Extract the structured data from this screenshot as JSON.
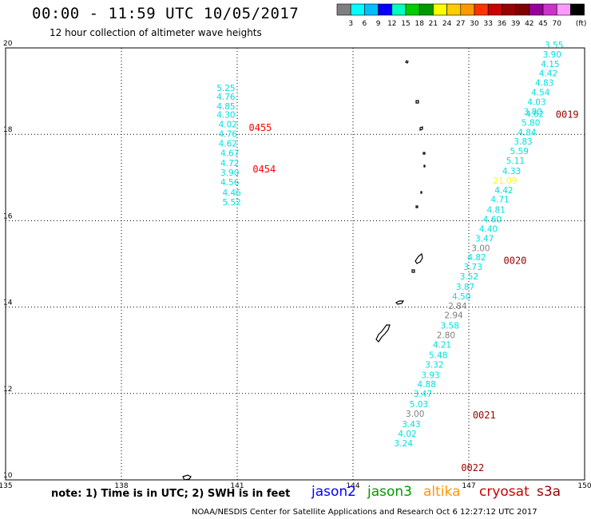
{
  "header": {
    "title": "00:00 - 11:59 UTC 10/05/2017",
    "subtitle": "12 hour collection of altimeter wave heights"
  },
  "color_scale": {
    "colors": [
      "#7f7f7f",
      "#00ffff",
      "#00bfff",
      "#0000ff",
      "#00ffbf",
      "#00cc00",
      "#009900",
      "#ffff00",
      "#ffcc00",
      "#ff9900",
      "#ff3300",
      "#cc0000",
      "#990000",
      "#7f0000",
      "#990099",
      "#cc33cc",
      "#ff99ff",
      "#000000"
    ],
    "labels": [
      "3",
      "6",
      "9",
      "12",
      "15",
      "18",
      "21",
      "24",
      "27",
      "30",
      "33",
      "36",
      "39",
      "42",
      "45",
      "70"
    ],
    "unit": "(ft)"
  },
  "axes": {
    "x_ticks": [
      "135",
      "138",
      "141",
      "144",
      "147",
      "150"
    ],
    "y_ticks": [
      "20",
      "18",
      "16",
      "14",
      "12",
      "10"
    ]
  },
  "tracks": [
    {
      "id": "0454",
      "color": "#ff0000",
      "values": [
        {
          "lon": 140.95,
          "lat": 19.0,
          "v": "5.25",
          "c": "#00e0e0"
        },
        {
          "lon": 140.95,
          "lat": 18.8,
          "v": "4.76",
          "c": "#00e0e0"
        },
        {
          "lon": 140.95,
          "lat": 18.58,
          "v": "4.85",
          "c": "#00e0e0"
        },
        {
          "lon": 140.95,
          "lat": 18.38,
          "v": "4.30",
          "c": "#00e0e0"
        },
        {
          "lon": 141.0,
          "lat": 18.16,
          "v": "4.02",
          "c": "#00e0e0"
        },
        {
          "lon": 141.0,
          "lat": 17.94,
          "v": "4.76",
          "c": "#00e0e0"
        },
        {
          "lon": 141.0,
          "lat": 17.72,
          "v": "4.62",
          "c": "#00e0e0"
        },
        {
          "lon": 141.05,
          "lat": 17.5,
          "v": "4.67",
          "c": "#00e0e0"
        },
        {
          "lon": 141.05,
          "lat": 17.26,
          "v": "4.72",
          "c": "#00e0e0"
        },
        {
          "lon": 141.05,
          "lat": 17.04,
          "v": "3.90",
          "c": "#00e0e0"
        },
        {
          "lon": 141.05,
          "lat": 16.82,
          "v": "4.56",
          "c": "#00e0e0"
        },
        {
          "lon": 141.1,
          "lat": 16.58,
          "v": "4.46",
          "c": "#00e0e0"
        },
        {
          "lon": 141.1,
          "lat": 16.36,
          "v": "5.52",
          "c": "#00e0e0"
        }
      ]
    },
    {
      "id": "0019",
      "color": "#990000",
      "values": [
        {
          "lon": 149.45,
          "lat": 20.0,
          "v": "3.55",
          "c": "#00e0e0"
        },
        {
          "lon": 149.4,
          "lat": 19.78,
          "v": "3.90",
          "c": "#00e0e0"
        },
        {
          "lon": 149.35,
          "lat": 19.56,
          "v": "4.15",
          "c": "#00e0e0"
        },
        {
          "lon": 149.3,
          "lat": 19.34,
          "v": "4.42",
          "c": "#00e0e0"
        },
        {
          "lon": 149.2,
          "lat": 19.12,
          "v": "4.83",
          "c": "#00e0e0"
        },
        {
          "lon": 149.1,
          "lat": 18.9,
          "v": "4.54",
          "c": "#00e0e0"
        },
        {
          "lon": 149.0,
          "lat": 18.68,
          "v": "4.03",
          "c": "#00e0e0"
        },
        {
          "lon": 148.9,
          "lat": 18.46,
          "v": "3.80",
          "c": "#00e0e0"
        },
        {
          "lon": 148.95,
          "lat": 18.4,
          "v": "4.62",
          "c": "#00e0e0"
        },
        {
          "lon": 148.85,
          "lat": 18.2,
          "v": "5.80",
          "c": "#00e0e0"
        },
        {
          "lon": 148.75,
          "lat": 17.98,
          "v": "4.84",
          "c": "#00e0e0"
        },
        {
          "lon": 148.65,
          "lat": 17.76,
          "v": "3.83",
          "c": "#00e0e0"
        },
        {
          "lon": 148.55,
          "lat": 17.54,
          "v": "5.59",
          "c": "#00e0e0"
        },
        {
          "lon": 148.45,
          "lat": 17.32,
          "v": "5.11",
          "c": "#00e0e0"
        },
        {
          "lon": 148.35,
          "lat": 17.08,
          "v": "4.33",
          "c": "#00e0e0"
        },
        {
          "lon": 148.25,
          "lat": 16.86,
          "v": "21.09",
          "c": "#ffff00"
        },
        {
          "lon": 148.15,
          "lat": 16.64,
          "v": "4.42",
          "c": "#00e0e0"
        },
        {
          "lon": 148.05,
          "lat": 16.42,
          "v": "4.71",
          "c": "#00e0e0"
        }
      ]
    },
    {
      "id": "0020",
      "color": "#990000",
      "values": [
        {
          "lon": 147.95,
          "lat": 16.18,
          "v": "4.81",
          "c": "#00e0e0"
        },
        {
          "lon": 147.85,
          "lat": 15.96,
          "v": "4.60",
          "c": "#00e0e0"
        },
        {
          "lon": 147.75,
          "lat": 15.74,
          "v": "4.40",
          "c": "#00e0e0"
        },
        {
          "lon": 147.65,
          "lat": 15.52,
          "v": "3.47",
          "c": "#00e0e0"
        },
        {
          "lon": 147.55,
          "lat": 15.3,
          "v": "3.00",
          "c": "#7f7f7f"
        },
        {
          "lon": 147.45,
          "lat": 15.08,
          "v": "4.82",
          "c": "#00e0e0"
        },
        {
          "lon": 147.35,
          "lat": 14.86,
          "v": "3.73",
          "c": "#00e0e0"
        },
        {
          "lon": 147.25,
          "lat": 14.64,
          "v": "3.52",
          "c": "#00e0e0"
        },
        {
          "lon": 147.15,
          "lat": 14.4,
          "v": "3.87",
          "c": "#00e0e0"
        },
        {
          "lon": 147.05,
          "lat": 14.18,
          "v": "4.50",
          "c": "#00e0e0"
        },
        {
          "lon": 146.95,
          "lat": 13.96,
          "v": "2.84",
          "c": "#7f7f7f"
        },
        {
          "lon": 146.85,
          "lat": 13.74,
          "v": "2.94",
          "c": "#7f7f7f"
        },
        {
          "lon": 146.75,
          "lat": 13.5,
          "v": "3.58",
          "c": "#00e0e0"
        },
        {
          "lon": 146.65,
          "lat": 13.28,
          "v": "2.80",
          "c": "#7f7f7f"
        },
        {
          "lon": 146.55,
          "lat": 13.06,
          "v": "4.21",
          "c": "#00e0e0"
        },
        {
          "lon": 146.45,
          "lat": 12.82,
          "v": "5.48",
          "c": "#00e0e0"
        },
        {
          "lon": 146.35,
          "lat": 12.6,
          "v": "3.32",
          "c": "#00e0e0"
        }
      ]
    },
    {
      "id": "0021",
      "color": "#990000",
      "values": [
        {
          "lon": 146.25,
          "lat": 12.36,
          "v": "3.93",
          "c": "#00e0e0"
        },
        {
          "lon": 146.15,
          "lat": 12.14,
          "v": "4.88",
          "c": "#00e0e0"
        },
        {
          "lon": 146.05,
          "lat": 11.92,
          "v": "3.47",
          "c": "#00e0e0"
        },
        {
          "lon": 145.95,
          "lat": 11.68,
          "v": "5.03",
          "c": "#00e0e0"
        },
        {
          "lon": 145.85,
          "lat": 11.46,
          "v": "3.00",
          "c": "#7f7f7f"
        },
        {
          "lon": 145.75,
          "lat": 11.22,
          "v": "3.43",
          "c": "#00e0e0"
        },
        {
          "lon": 145.65,
          "lat": 11.0,
          "v": "4.02",
          "c": "#00e0e0"
        },
        {
          "lon": 145.55,
          "lat": 10.78,
          "v": "3.24",
          "c": "#00e0e0"
        }
      ]
    },
    {
      "id": "0455",
      "color": "#ff0000",
      "values": []
    },
    {
      "id": "0022",
      "color": "#990000",
      "values": []
    }
  ],
  "pass_labels": [
    {
      "text": "0455",
      "color": "#ff0000",
      "lon": 141.3,
      "lat": 18.08
    },
    {
      "text": "0454",
      "color": "#ff0000",
      "lon": 141.4,
      "lat": 17.12
    },
    {
      "text": "0019",
      "color": "#990000",
      "lon": 149.25,
      "lat": 18.38
    },
    {
      "text": "0020",
      "color": "#990000",
      "lon": 147.9,
      "lat": 15.0
    },
    {
      "text": "0021",
      "color": "#990000",
      "lon": 147.1,
      "lat": 11.42
    },
    {
      "text": "0022",
      "color": "#990000",
      "lon": 146.8,
      "lat": 10.2
    }
  ],
  "footer": {
    "note": "note: 1) Time is in UTC; 2) SWH is in feet",
    "satellites": [
      {
        "name": "jason2",
        "color": "#0000ff"
      },
      {
        "name": "jason3",
        "color": "#009900"
      },
      {
        "name": "altika",
        "color": "#ff9900"
      },
      {
        "name": "cryosat",
        "color": "#cc0000"
      },
      {
        "name": "s3a",
        "color": "#990000"
      }
    ],
    "credit": "NOAA/NESDIS Center for Satellite Applications and Research    Oct  6 12:27:12 UTC 2017"
  }
}
